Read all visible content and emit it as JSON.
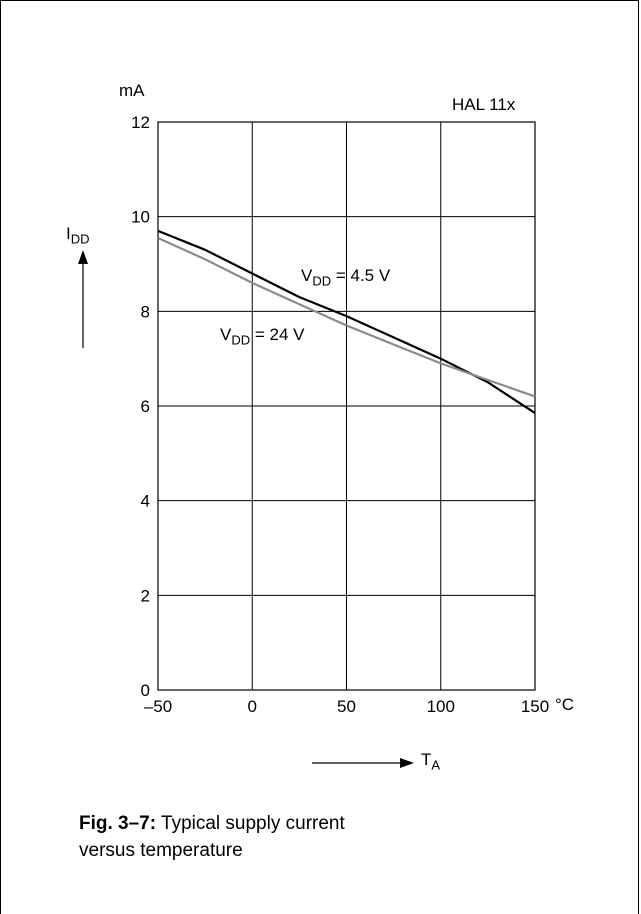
{
  "chart_data": {
    "type": "line",
    "title": "HAL 11x",
    "y_unit": "mA",
    "x_unit": "°C",
    "ylabel_main": "I",
    "ylabel_sub": "DD",
    "xlabel_main": "T",
    "xlabel_sub": "A",
    "xlim": [
      -50,
      150
    ],
    "ylim": [
      0,
      12
    ],
    "x_ticks": [
      "–50",
      "0",
      "50",
      "100",
      "150"
    ],
    "x_tick_values": [
      -50,
      0,
      50,
      100,
      150
    ],
    "y_ticks": [
      "0",
      "2",
      "4",
      "6",
      "8",
      "10",
      "12"
    ],
    "y_tick_values": [
      0,
      2,
      4,
      6,
      8,
      10,
      12
    ],
    "grid": true,
    "series": [
      {
        "name_main": "V",
        "name_sub": "DD",
        "name_rest": " = 4.5 V",
        "color": "#000000",
        "x": [
          -50,
          -25,
          0,
          25,
          50,
          75,
          100,
          125,
          150
        ],
        "y": [
          9.7,
          9.3,
          8.8,
          8.3,
          7.9,
          7.45,
          7.0,
          6.5,
          5.85
        ]
      },
      {
        "name_main": "V",
        "name_sub": "DD",
        "name_rest": " = 24 V",
        "color": "#8a8a8a",
        "x": [
          -50,
          -25,
          0,
          25,
          50,
          75,
          100,
          125,
          150
        ],
        "y": [
          9.55,
          9.1,
          8.6,
          8.15,
          7.7,
          7.3,
          6.9,
          6.55,
          6.2
        ]
      }
    ]
  },
  "caption": {
    "fig_label": "Fig. 3–7:",
    "text_line1": " Typical supply current",
    "text_line2": "versus temperature"
  }
}
